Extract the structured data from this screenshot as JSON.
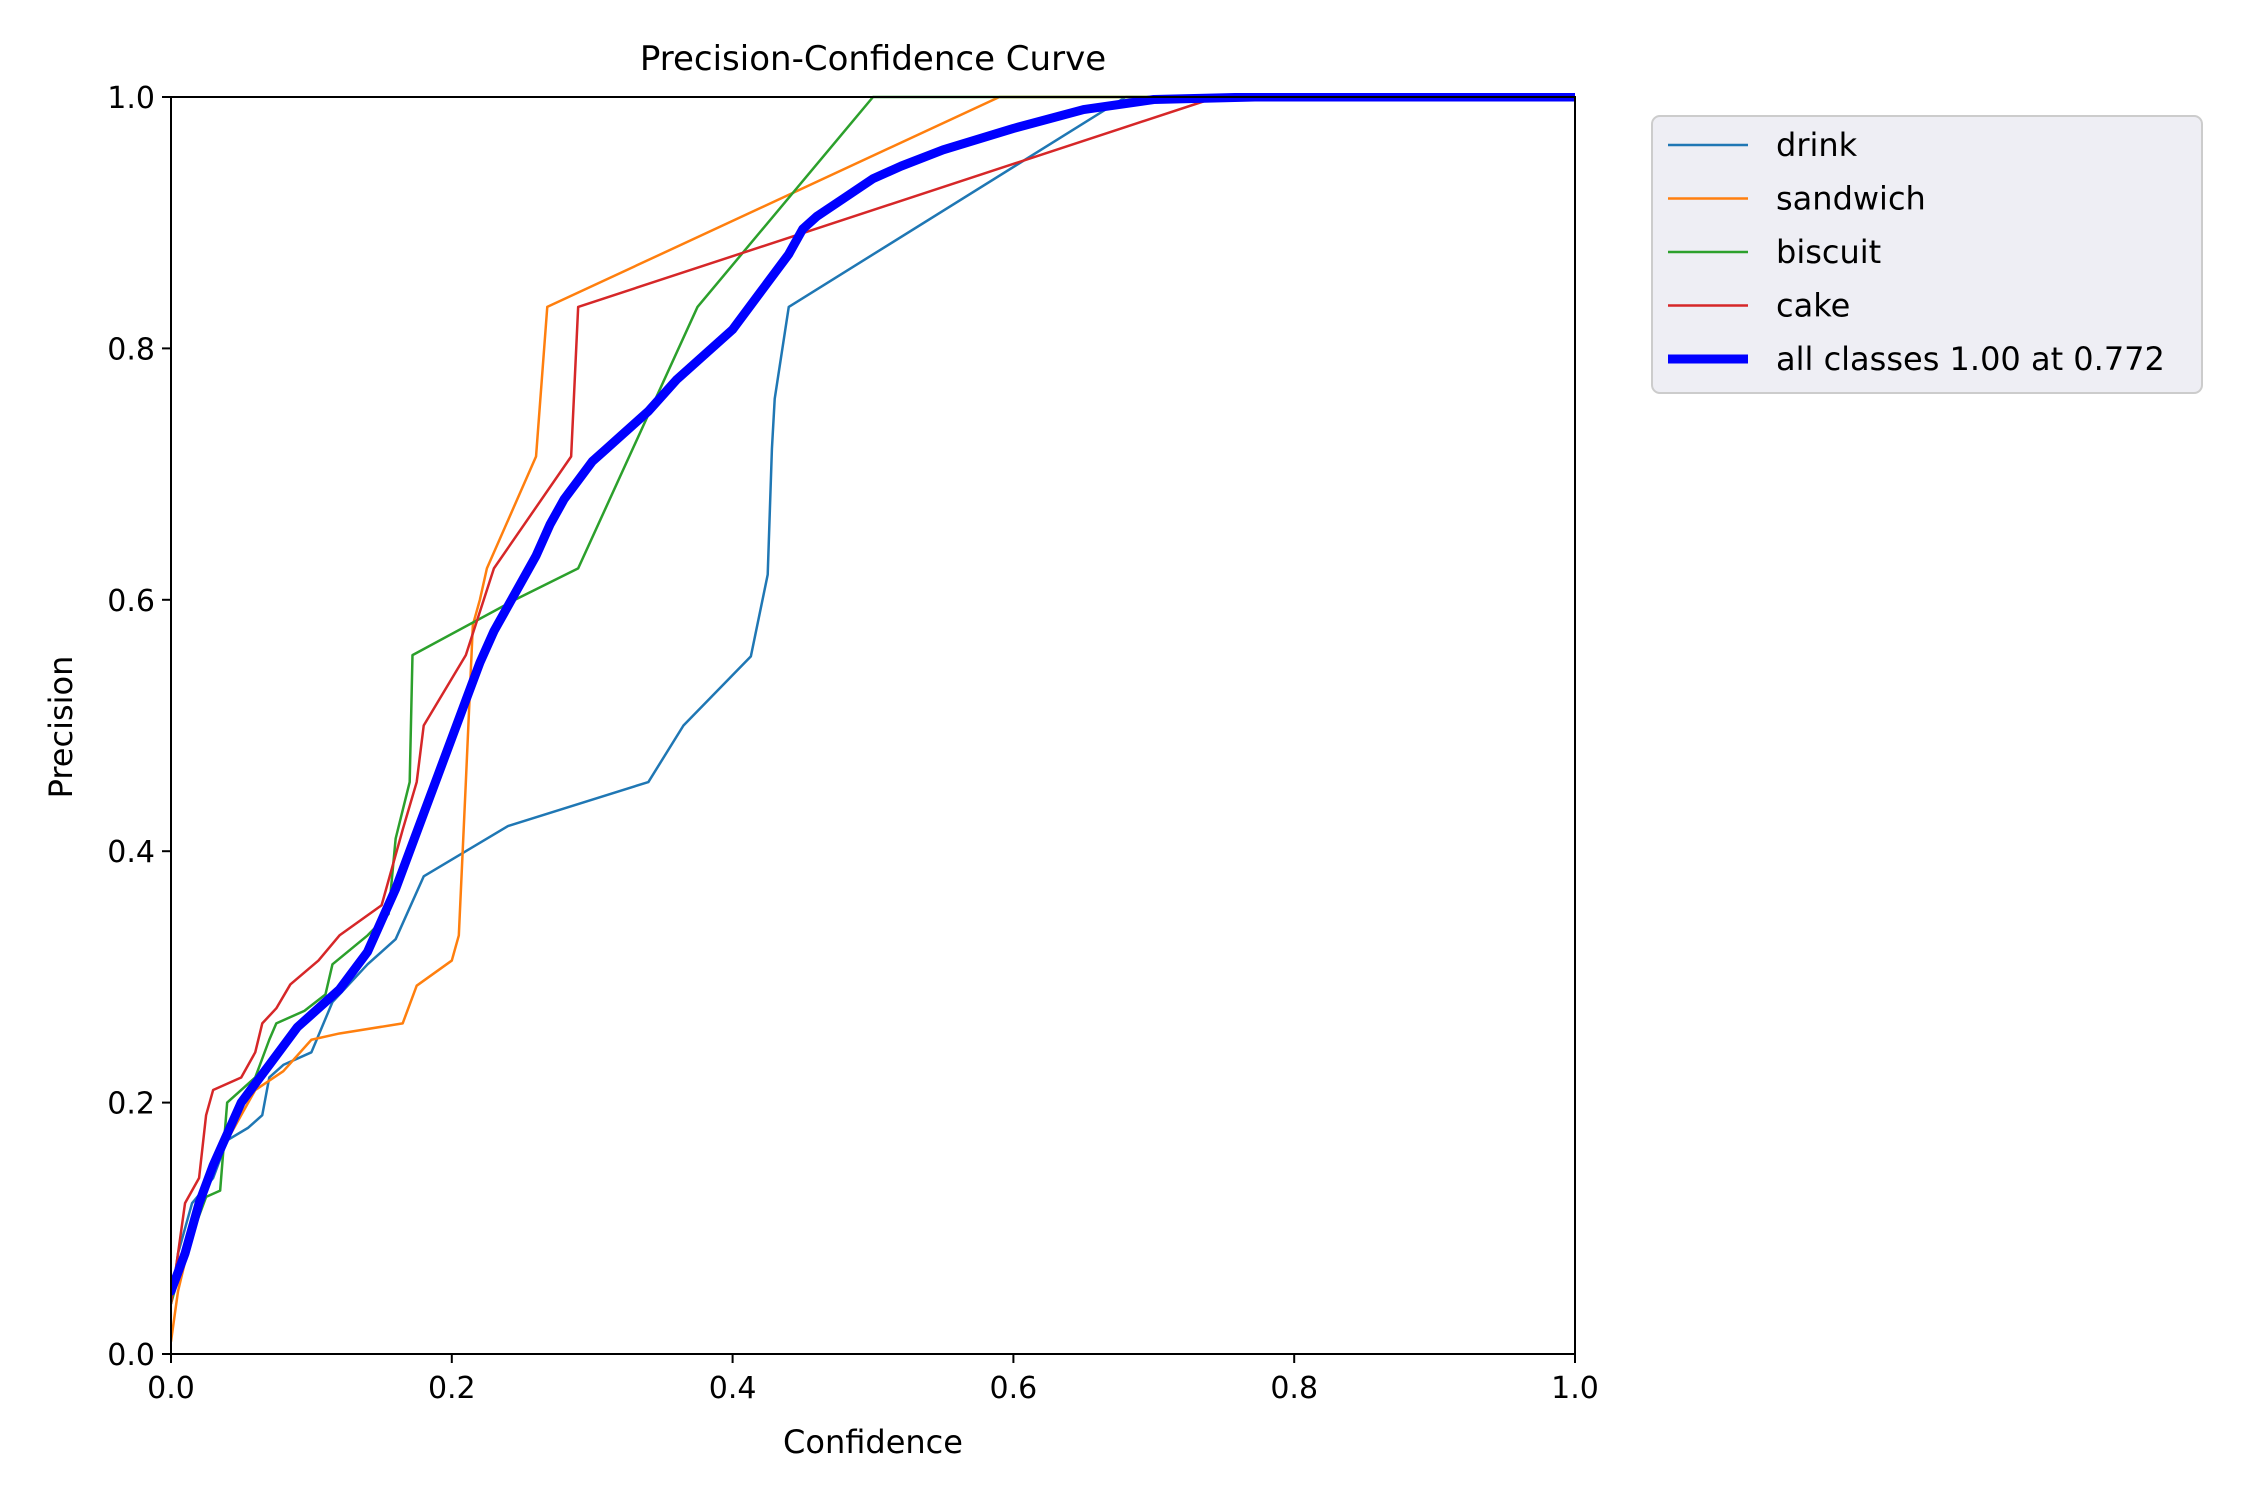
{
  "chart_data": {
    "type": "line",
    "title": "Precision-Confidence Curve",
    "xlabel": "Confidence",
    "ylabel": "Precision",
    "xlim": [
      0.0,
      1.0
    ],
    "ylim": [
      0.0,
      1.0
    ],
    "x_ticks": [
      "0.0",
      "0.2",
      "0.4",
      "0.6",
      "0.8",
      "1.0"
    ],
    "y_ticks": [
      "0.0",
      "0.2",
      "0.4",
      "0.6",
      "0.8",
      "1.0"
    ],
    "grid": false,
    "legend_position": "outside-top-right",
    "series": [
      {
        "name": "drink",
        "color": "#1f77b4",
        "x": [
          0.0,
          0.005,
          0.015,
          0.03,
          0.04,
          0.055,
          0.065,
          0.07,
          0.08,
          0.1,
          0.115,
          0.14,
          0.16,
          0.18,
          0.24,
          0.34,
          0.365,
          0.413,
          0.425,
          0.428,
          0.43,
          0.44,
          0.68,
          0.75,
          1.0
        ],
        "y": [
          0.04,
          0.08,
          0.12,
          0.14,
          0.17,
          0.18,
          0.19,
          0.22,
          0.23,
          0.24,
          0.28,
          0.31,
          0.33,
          0.38,
          0.42,
          0.455,
          0.5,
          0.555,
          0.62,
          0.72,
          0.76,
          0.833,
          1.0,
          1.0,
          1.0
        ]
      },
      {
        "name": "sandwich",
        "color": "#ff7f0e",
        "x": [
          0.0,
          0.005,
          0.02,
          0.04,
          0.06,
          0.08,
          0.1,
          0.12,
          0.165,
          0.175,
          0.2,
          0.205,
          0.21,
          0.215,
          0.22,
          0.225,
          0.26,
          0.268,
          0.59,
          1.0
        ],
        "y": [
          0.01,
          0.05,
          0.12,
          0.17,
          0.21,
          0.225,
          0.25,
          0.255,
          0.263,
          0.293,
          0.313,
          0.333,
          0.455,
          0.58,
          0.6,
          0.625,
          0.714,
          0.833,
          1.0,
          1.0
        ]
      },
      {
        "name": "biscuit",
        "color": "#2ca02c",
        "x": [
          0.0,
          0.01,
          0.025,
          0.035,
          0.04,
          0.06,
          0.07,
          0.075,
          0.095,
          0.11,
          0.115,
          0.14,
          0.155,
          0.16,
          0.17,
          0.172,
          0.245,
          0.29,
          0.375,
          0.5,
          1.0
        ],
        "y": [
          0.04,
          0.08,
          0.125,
          0.13,
          0.2,
          0.22,
          0.25,
          0.263,
          0.273,
          0.286,
          0.31,
          0.333,
          0.35,
          0.41,
          0.455,
          0.556,
          0.6,
          0.625,
          0.833,
          1.0,
          1.0
        ]
      },
      {
        "name": "cake",
        "color": "#d62728",
        "x": [
          0.0,
          0.01,
          0.02,
          0.025,
          0.03,
          0.04,
          0.05,
          0.06,
          0.065,
          0.075,
          0.085,
          0.105,
          0.12,
          0.15,
          0.165,
          0.175,
          0.18,
          0.21,
          0.23,
          0.285,
          0.29,
          0.745,
          1.0
        ],
        "y": [
          0.04,
          0.12,
          0.14,
          0.19,
          0.21,
          0.215,
          0.22,
          0.24,
          0.263,
          0.275,
          0.294,
          0.313,
          0.333,
          0.357,
          0.417,
          0.455,
          0.5,
          0.556,
          0.625,
          0.714,
          0.833,
          1.0,
          1.0
        ]
      },
      {
        "name": "all classes 1.00 at 0.772",
        "color": "#0000ff",
        "bold": true,
        "x": [
          0.0,
          0.01,
          0.02,
          0.03,
          0.04,
          0.05,
          0.06,
          0.07,
          0.08,
          0.09,
          0.1,
          0.11,
          0.12,
          0.13,
          0.14,
          0.15,
          0.16,
          0.17,
          0.18,
          0.19,
          0.2,
          0.21,
          0.22,
          0.23,
          0.24,
          0.25,
          0.26,
          0.27,
          0.28,
          0.29,
          0.3,
          0.31,
          0.32,
          0.34,
          0.36,
          0.38,
          0.4,
          0.42,
          0.44,
          0.45,
          0.46,
          0.48,
          0.5,
          0.52,
          0.55,
          0.6,
          0.65,
          0.7,
          0.772,
          1.0
        ],
        "y": [
          0.05,
          0.08,
          0.12,
          0.15,
          0.175,
          0.2,
          0.215,
          0.23,
          0.245,
          0.26,
          0.27,
          0.28,
          0.29,
          0.305,
          0.32,
          0.345,
          0.37,
          0.4,
          0.43,
          0.46,
          0.49,
          0.52,
          0.55,
          0.575,
          0.595,
          0.615,
          0.635,
          0.66,
          0.68,
          0.695,
          0.71,
          0.72,
          0.73,
          0.75,
          0.775,
          0.795,
          0.815,
          0.845,
          0.875,
          0.895,
          0.905,
          0.92,
          0.935,
          0.945,
          0.958,
          0.975,
          0.99,
          0.998,
          1.0,
          1.0
        ]
      }
    ]
  }
}
